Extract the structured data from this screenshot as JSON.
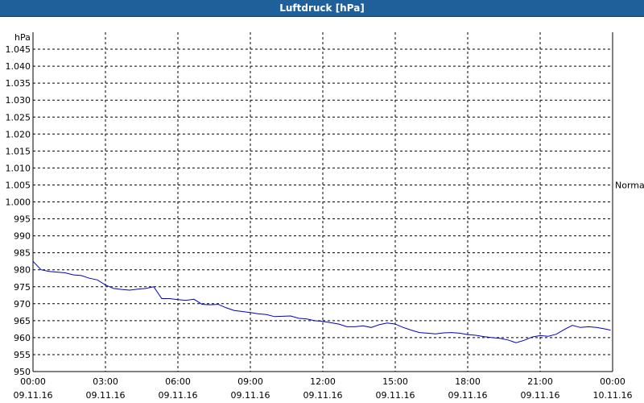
{
  "window": {
    "title": "Luftdruck [hPa]"
  },
  "chart_data": {
    "type": "line",
    "title": "Luftdruck [hPa]",
    "ylabel": "hPa",
    "ylim": [
      950,
      1050
    ],
    "yticks": [
      "950",
      "955",
      "960",
      "965",
      "970",
      "975",
      "980",
      "985",
      "990",
      "995",
      "1.000",
      "1.005",
      "1.010",
      "1.015",
      "1.020",
      "1.025",
      "1.030",
      "1.035",
      "1.040",
      "1.045"
    ],
    "xlim": [
      "09.11.16 00:00",
      "10.11.16 00:00"
    ],
    "xticks": [
      {
        "time": "00:00",
        "date": "09.11.16"
      },
      {
        "time": "03:00",
        "date": "09.11.16"
      },
      {
        "time": "06:00",
        "date": "09.11.16"
      },
      {
        "time": "09:00",
        "date": "09.11.16"
      },
      {
        "time": "12:00",
        "date": "09.11.16"
      },
      {
        "time": "15:00",
        "date": "09.11.16"
      },
      {
        "time": "18:00",
        "date": "09.11.16"
      },
      {
        "time": "21:00",
        "date": "09.11.16"
      },
      {
        "time": "00:00",
        "date": "10.11.16"
      }
    ],
    "annotation": {
      "label": "Normal",
      "y": 1005
    },
    "grid": true,
    "line_color": "#0000cc",
    "series": [
      {
        "x": [
          "00:00",
          "00:20",
          "00:40",
          "01:00",
          "01:20",
          "01:40",
          "02:00",
          "02:20",
          "02:40",
          "03:00",
          "03:20",
          "03:40",
          "04:00",
          "04:20",
          "04:40",
          "05:00",
          "05:20",
          "05:40",
          "06:00",
          "06:20",
          "06:40",
          "07:00",
          "07:20",
          "07:40",
          "08:00",
          "08:20",
          "08:40",
          "09:00",
          "09:20",
          "09:40",
          "10:00",
          "10:20",
          "10:40",
          "11:00",
          "11:20",
          "11:40",
          "12:00",
          "12:20",
          "12:40",
          "13:00",
          "13:20",
          "13:40",
          "14:00",
          "14:20",
          "14:40",
          "15:00",
          "15:20",
          "15:40",
          "16:00",
          "16:20",
          "16:40",
          "17:00",
          "17:20",
          "17:40",
          "18:00",
          "18:20",
          "18:40",
          "19:00",
          "19:20",
          "19:40",
          "20:00",
          "20:20",
          "20:40",
          "21:00",
          "21:20",
          "21:40",
          "22:00",
          "22:20",
          "22:40",
          "23:00",
          "23:20",
          "23:40",
          "23:55"
        ],
        "values": [
          982.5,
          980.0,
          979.5,
          979.3,
          979.1,
          978.5,
          978.3,
          977.5,
          977.0,
          975.5,
          974.5,
          974.2,
          974.0,
          974.3,
          974.5,
          975.0,
          971.5,
          971.5,
          971.2,
          971.0,
          971.3,
          969.8,
          969.7,
          969.8,
          968.8,
          968.0,
          967.7,
          967.4,
          967.0,
          966.8,
          966.2,
          966.3,
          966.4,
          965.7,
          965.5,
          965.0,
          964.8,
          964.4,
          964.0,
          963.2,
          963.2,
          963.5,
          963.0,
          963.8,
          964.3,
          964.0,
          963.0,
          962.2,
          961.5,
          961.3,
          961.1,
          961.4,
          961.5,
          961.3,
          960.9,
          960.7,
          960.3,
          960.0,
          959.8,
          959.3,
          958.5,
          959.2,
          960.2,
          960.6,
          960.4,
          961.0,
          962.4,
          963.6,
          963.0,
          963.2,
          963.0,
          962.6,
          962.2
        ]
      }
    ]
  }
}
